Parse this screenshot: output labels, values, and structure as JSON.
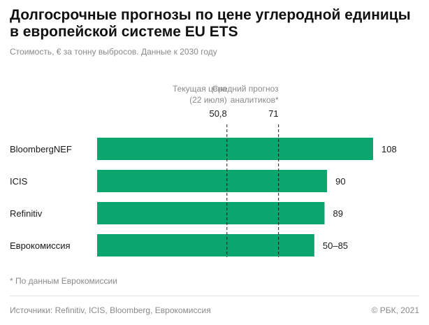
{
  "header": {
    "title_line1": "Долгосрочные прогнозы по цене углеродной единицы",
    "title_line2": "в европейской системе EU ETS",
    "subtitle": "Стоимость, € за тонну выбросов. Данные к 2030 году"
  },
  "chart_data": {
    "type": "bar",
    "orientation": "horizontal",
    "title": "Долгосрочные прогнозы по цене углеродной единицы в европейской системе EU ETS",
    "subtitle": "Стоимость, € за тонну выбросов. Данные к 2030 году",
    "categories": [
      "BloombergNEF",
      "ICIS",
      "Refinitiv",
      "Еврокомиссия"
    ],
    "values": [
      108,
      90,
      89,
      85
    ],
    "value_labels": [
      "108",
      "90",
      "89",
      "50–85"
    ],
    "xlim": [
      0,
      108
    ],
    "grid": false,
    "colors": {
      "bar": "#0aa66e"
    },
    "reference_lines": [
      {
        "value": 50.8,
        "label_line1": "Текущая цена",
        "label_line2": "(22 июля)",
        "value_label": "50,8"
      },
      {
        "value": 71,
        "label_line1": "Средний прогноз",
        "label_line2": "аналитиков*",
        "value_label": "71"
      }
    ]
  },
  "footnote": "* По данным Еврокомиссии",
  "footer": {
    "sources": "Источники: Refinitiv, ICIS, Bloomberg, Еврокомиссия",
    "copyright": "© РБК, 2021"
  }
}
